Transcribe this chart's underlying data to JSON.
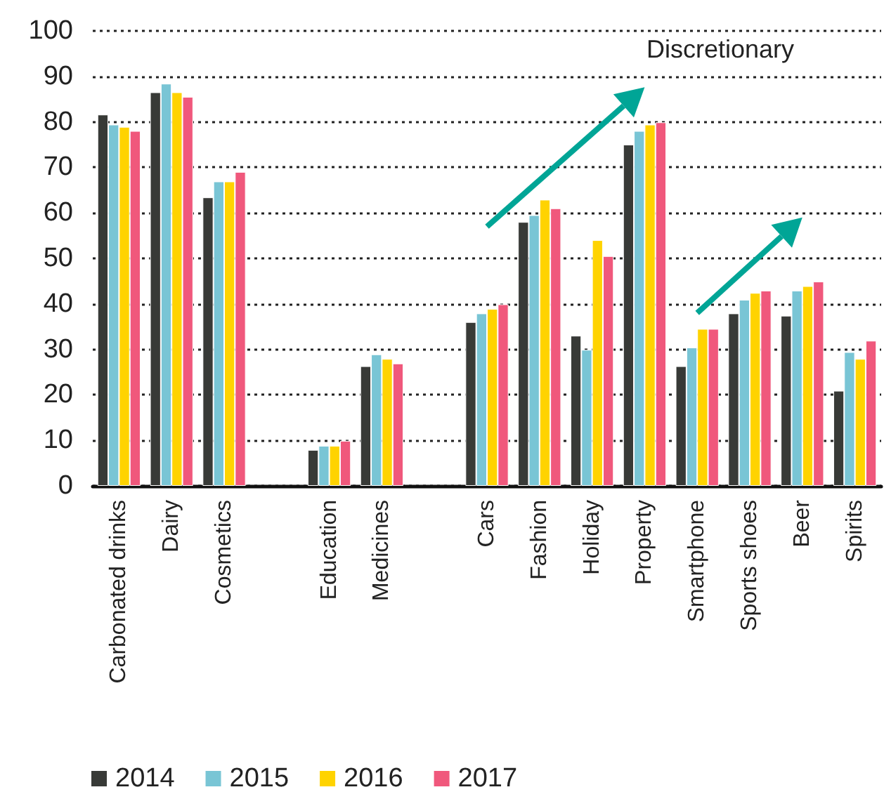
{
  "chart_data": {
    "type": "bar",
    "categories": [
      "Carbonated drinks",
      "Dairy",
      "Cosmetics",
      null,
      "Education",
      "Medicines",
      null,
      "Cars",
      "Fashion",
      "Holiday",
      "Property",
      "Smartphone",
      "Sports shoes",
      "Beer",
      "Spirits"
    ],
    "series": [
      {
        "name": "2014",
        "color": "#383a37",
        "values": [
          81.6,
          86.5,
          63.4,
          null,
          7.9,
          26.3,
          null,
          36,
          58,
          33,
          75,
          26.3,
          37.9,
          37.4,
          20.9
        ]
      },
      {
        "name": "2015",
        "color": "#79c5d5",
        "values": [
          79.4,
          88.4,
          66.9,
          null,
          8.8,
          28.9,
          null,
          37.9,
          59.5,
          29.9,
          78,
          30.4,
          40.9,
          42.9,
          29.4
        ]
      },
      {
        "name": "2016",
        "color": "#ffd300",
        "values": [
          78.9,
          86.5,
          66.9,
          null,
          8.8,
          27.9,
          null,
          38.9,
          62.9,
          54,
          79.4,
          34.5,
          42.4,
          43.9,
          27.9
        ]
      },
      {
        "name": "2017",
        "color": "#f0587c",
        "values": [
          78,
          85.5,
          69,
          null,
          9.9,
          26.9,
          null,
          39.9,
          61,
          50.5,
          79.9,
          34.5,
          42.9,
          44.9,
          31.9
        ]
      }
    ],
    "ylim": [
      0,
      100
    ],
    "yticks": [
      0,
      10,
      20,
      30,
      40,
      50,
      60,
      70,
      80,
      90,
      100
    ],
    "grid": "y",
    "legend": "bottom left",
    "annotations": [
      "Discretionary"
    ]
  }
}
